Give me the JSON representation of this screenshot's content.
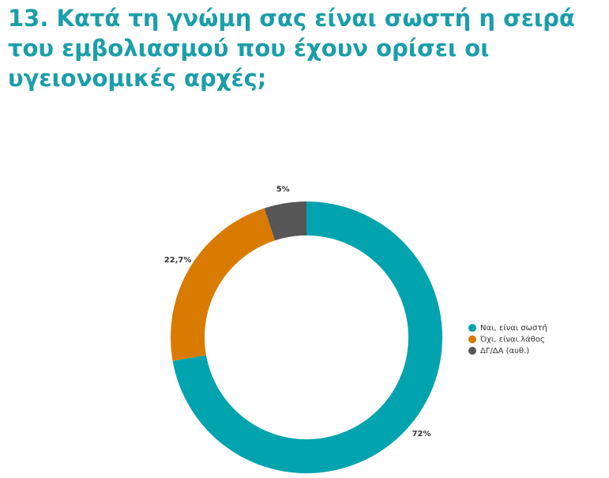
{
  "chart_data": {
    "type": "donut",
    "title": "13. Κατά τη γνώμη σας είναι σωστή η σειρά του εμβολιασμού που έχουν ορίσει οι υγειονομικές αρχές;",
    "categories": [
      "Ναι, είναι σωστή",
      "Όχι, είναι λάθος",
      "ΔΓ/ΔΑ (αυθ.)"
    ],
    "values": [
      72,
      22.7,
      5
    ],
    "value_labels": [
      "72%",
      "22,7%",
      "5%"
    ],
    "colors": [
      "#00a3ae",
      "#d97b00",
      "#565656"
    ],
    "legend": "right"
  }
}
